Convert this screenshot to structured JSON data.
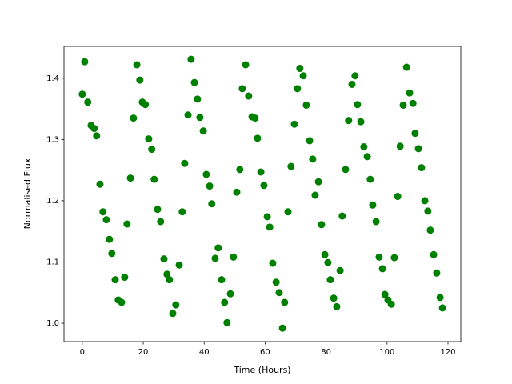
{
  "chart_data": {
    "type": "scatter",
    "xlabel": "Time (Hours)",
    "ylabel": "Normalised Flux",
    "color": "#008000",
    "x": [
      0,
      0.8,
      1.8,
      2.9,
      3.9,
      4.7,
      5.8,
      6.8,
      7.9,
      8.9,
      9.7,
      10.8,
      11.8,
      12.9,
      13.9,
      14.7,
      15.8,
      16.8,
      17.9,
      18.9,
      19.7,
      20.7,
      21.8,
      22.8,
      23.6,
      24.7,
      25.7,
      26.8,
      27.8,
      28.6,
      29.7,
      30.7,
      31.8,
      32.8,
      33.6,
      34.7,
      35.7,
      36.8,
      37.8,
      38.6,
      39.7,
      40.7,
      41.8,
      42.5,
      43.6,
      44.6,
      45.7,
      46.7,
      47.5,
      48.6,
      49.6,
      50.7,
      51.7,
      52.5,
      53.6,
      54.6,
      55.7,
      56.7,
      57.5,
      58.6,
      59.6,
      60.7,
      61.5,
      62.5,
      63.6,
      64.6,
      65.7,
      66.4,
      67.5,
      68.5,
      69.6,
      70.6,
      71.4,
      72.5,
      73.5,
      74.6,
      75.6,
      76.4,
      77.5,
      78.5,
      79.6,
      80.6,
      81.4,
      82.5,
      83.5,
      84.6,
      85.3,
      86.4,
      87.4,
      88.5,
      89.5,
      90.3,
      91.4,
      92.4,
      93.5,
      94.5,
      95.3,
      96.4,
      97.4,
      98.5,
      99.3,
      100.3,
      101.4,
      102.4,
      103.5,
      104.3,
      105.3,
      106.4,
      107.4,
      108.5,
      109.2,
      110.3,
      111.3,
      112.4,
      113.4,
      114.2,
      115.3,
      116.3,
      117.4,
      118.2
    ],
    "values": [
      1.374,
      1.427,
      1.361,
      1.323,
      1.318,
      1.306,
      1.227,
      1.182,
      1.169,
      1.137,
      1.114,
      1.071,
      1.038,
      1.034,
      1.075,
      1.162,
      1.237,
      1.335,
      1.422,
      1.397,
      1.361,
      1.357,
      1.301,
      1.284,
      1.235,
      1.186,
      1.166,
      1.105,
      1.08,
      1.071,
      1.016,
      1.03,
      1.095,
      1.182,
      1.261,
      1.34,
      1.431,
      1.393,
      1.366,
      1.336,
      1.314,
      1.243,
      1.224,
      1.195,
      1.106,
      1.123,
      1.071,
      1.034,
      1.001,
      1.048,
      1.108,
      1.214,
      1.251,
      1.383,
      1.422,
      1.371,
      1.337,
      1.335,
      1.302,
      1.247,
      1.225,
      1.174,
      1.157,
      1.098,
      1.067,
      1.05,
      0.992,
      1.034,
      1.182,
      1.256,
      1.325,
      1.383,
      1.416,
      1.404,
      1.356,
      1.298,
      1.268,
      1.209,
      1.231,
      1.161,
      1.112,
      1.099,
      1.071,
      1.041,
      1.027,
      1.086,
      1.175,
      1.251,
      1.331,
      1.39,
      1.404,
      1.357,
      1.329,
      1.288,
      1.272,
      1.235,
      1.193,
      1.166,
      1.108,
      1.089,
      1.047,
      1.038,
      1.031,
      1.107,
      1.207,
      1.289,
      1.356,
      1.418,
      1.376,
      1.359,
      1.31,
      1.285,
      1.254,
      1.2,
      1.183,
      1.152,
      1.112,
      1.082,
      1.042,
      1.025
    ],
    "xlim": [
      -6,
      124.2
    ],
    "xticks": [
      0,
      20,
      40,
      60,
      80,
      100,
      120
    ],
    "ylim": [
      0.97,
      1.452
    ],
    "yticks": [
      {
        "value": 1,
        "label": "1.0"
      },
      1.1,
      1.2,
      1.3,
      1.4
    ]
  }
}
